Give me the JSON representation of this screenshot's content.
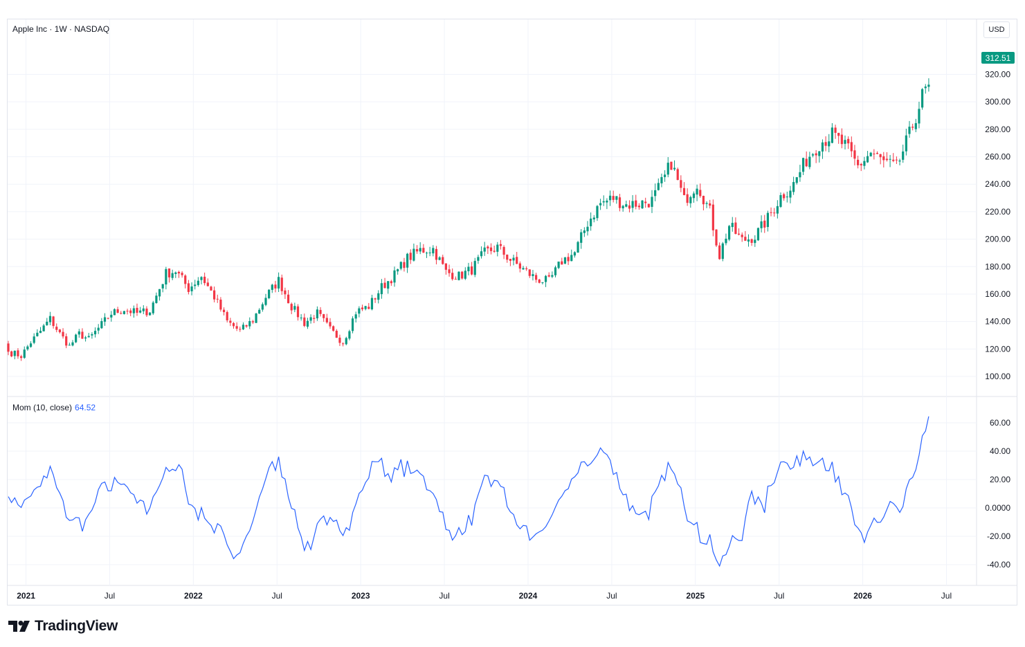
{
  "chart_data": {
    "type": "candlestick",
    "title": "Apple Inc · 1W · NASDAQ",
    "currency": "USD",
    "last_price": "312.51",
    "price_axis": {
      "ticks": [
        "320.00",
        "300.00",
        "280.00",
        "260.00",
        "240.00",
        "220.00",
        "200.00",
        "180.00",
        "160.00",
        "140.00",
        "120.00",
        "100.00"
      ],
      "range": [
        90,
        322
      ]
    },
    "time_axis": {
      "labels": [
        {
          "text": "2021",
          "bold": true
        },
        {
          "text": "Jul",
          "bold": false
        },
        {
          "text": "2022",
          "bold": true
        },
        {
          "text": "Jul",
          "bold": false
        },
        {
          "text": "2023",
          "bold": true
        },
        {
          "text": "Jul",
          "bold": false
        },
        {
          "text": "2024",
          "bold": true
        },
        {
          "text": "Jul",
          "bold": false
        },
        {
          "text": "2025",
          "bold": true
        },
        {
          "text": "Jul",
          "bold": false
        },
        {
          "text": "2026",
          "bold": true
        },
        {
          "text": "Jul",
          "bold": false
        }
      ],
      "start": "2020-11-23",
      "weeks": 289
    },
    "anchor_closes": [
      [
        0,
        118
      ],
      [
        4,
        115
      ],
      [
        7,
        125
      ],
      [
        10,
        133
      ],
      [
        13,
        142
      ],
      [
        16,
        131
      ],
      [
        19,
        122
      ],
      [
        22,
        131
      ],
      [
        25,
        127
      ],
      [
        28,
        135
      ],
      [
        32,
        146
      ],
      [
        36,
        149
      ],
      [
        40,
        146
      ],
      [
        44,
        148
      ],
      [
        49,
        175
      ],
      [
        52,
        177
      ],
      [
        56,
        164
      ],
      [
        60,
        173
      ],
      [
        64,
        158
      ],
      [
        68,
        140
      ],
      [
        72,
        133
      ],
      [
        76,
        141
      ],
      [
        80,
        158
      ],
      [
        84,
        170
      ],
      [
        88,
        151
      ],
      [
        92,
        139
      ],
      [
        96,
        146
      ],
      [
        100,
        134
      ],
      [
        104,
        125
      ],
      [
        108,
        147
      ],
      [
        112,
        151
      ],
      [
        116,
        165
      ],
      [
        120,
        174
      ],
      [
        124,
        186
      ],
      [
        128,
        192
      ],
      [
        132,
        193
      ],
      [
        136,
        176
      ],
      [
        140,
        173
      ],
      [
        144,
        178
      ],
      [
        148,
        190
      ],
      [
        152,
        194
      ],
      [
        156,
        185
      ],
      [
        160,
        178
      ],
      [
        164,
        171
      ],
      [
        168,
        169
      ],
      [
        172,
        184
      ],
      [
        176,
        190
      ],
      [
        180,
        212
      ],
      [
        184,
        226
      ],
      [
        188,
        230
      ],
      [
        192,
        225
      ],
      [
        196,
        226
      ],
      [
        200,
        228
      ],
      [
        204,
        245
      ],
      [
        206,
        256
      ],
      [
        210,
        228
      ],
      [
        214,
        241
      ],
      [
        218,
        220
      ],
      [
        221,
        188
      ],
      [
        224,
        210
      ],
      [
        228,
        199
      ],
      [
        232,
        202
      ],
      [
        236,
        215
      ],
      [
        240,
        231
      ],
      [
        244,
        240
      ],
      [
        248,
        258
      ],
      [
        252,
        270
      ],
      [
        256,
        276
      ],
      [
        260,
        268
      ],
      [
        264,
        253
      ],
      [
        268,
        263
      ],
      [
        272,
        256
      ],
      [
        276,
        252
      ],
      [
        280,
        276
      ],
      [
        284,
        304
      ],
      [
        286,
        312.51
      ]
    ],
    "momentum": {
      "name": "Mom (10, close)",
      "last_value": "64.52",
      "ticks": [
        "60.00",
        "40.00",
        "20.00",
        "0.0000",
        "-20.00",
        "-40.00"
      ],
      "range": [
        -49,
        70
      ]
    },
    "colors": {
      "up": "#089981",
      "down": "#f23645",
      "momentum_line": "#2962ff"
    },
    "grid": true
  },
  "branding": {
    "logo_text": "TradingView"
  }
}
